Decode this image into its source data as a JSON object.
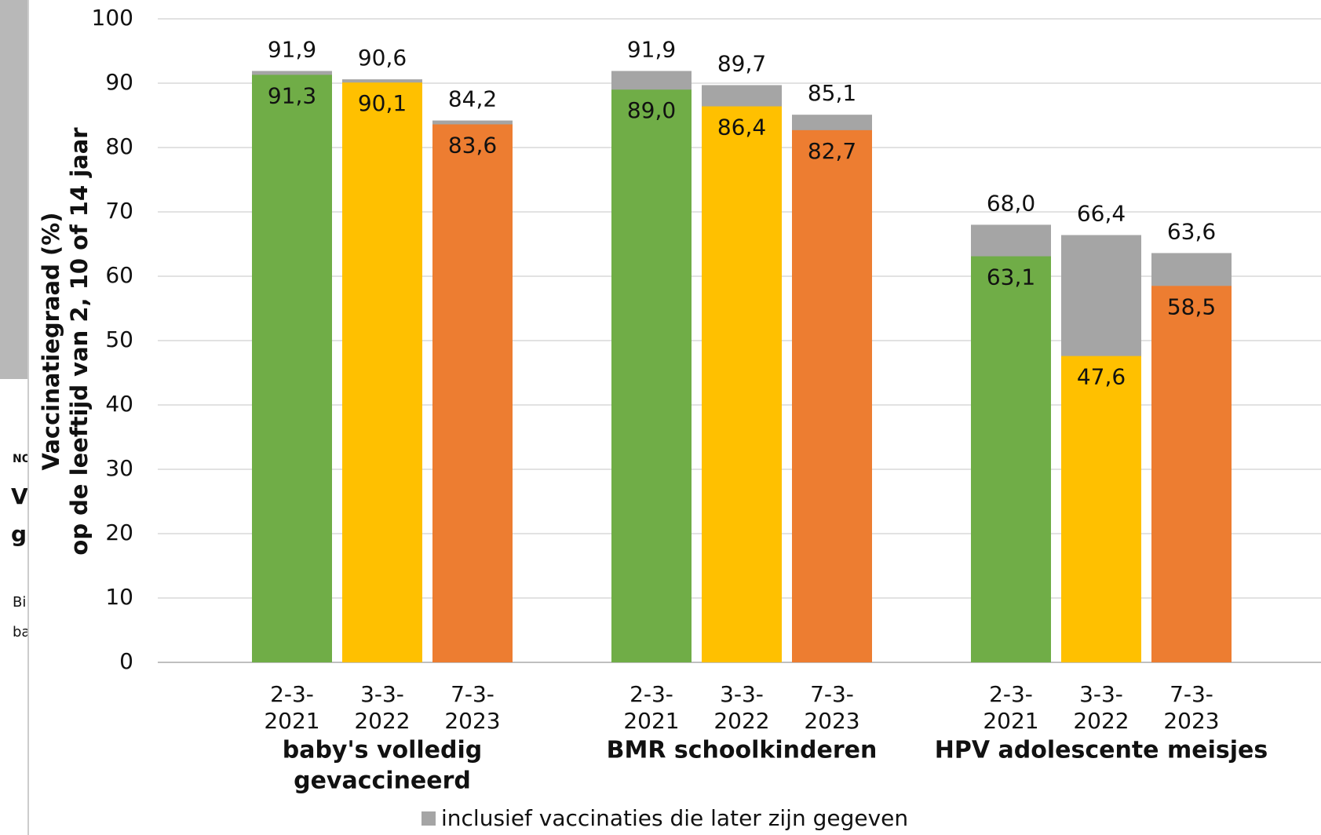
{
  "chart_data": {
    "type": "bar",
    "y_axis_label": [
      "Vaccinatiegraad (%)",
      "op de leeftijd van 2, 10 of 14 jaar"
    ],
    "categories": [
      [
        "2-3-",
        "2021"
      ],
      [
        "3-3-",
        "2022"
      ],
      [
        "7-3-",
        "2023"
      ],
      [
        "2-3-",
        "2021"
      ],
      [
        "3-3-",
        "2022"
      ],
      [
        "7-3-",
        "2023"
      ],
      [
        "2-3-",
        "2021"
      ],
      [
        "3-3-",
        "2022"
      ],
      [
        "7-3-",
        "2023"
      ]
    ],
    "groups": [
      [
        "baby's volledig",
        "gevaccineerd"
      ],
      [
        "BMR schoolkinderen"
      ],
      [
        "HPV adolescente meisjes"
      ]
    ],
    "series": [
      {
        "name": "inclusief vaccinaties die later zijn gegeven",
        "color": "#a5a5a5",
        "values": [
          91.9,
          90.6,
          84.2,
          91.9,
          89.7,
          85.1,
          68.0,
          66.4,
          63.6
        ],
        "value_labels": [
          "91,9",
          "90,6",
          "84,2",
          "91,9",
          "89,7",
          "85,1",
          "68,0",
          "66,4",
          "63,6"
        ]
      },
      {
        "colors": [
          "#70ad47",
          "#ffc000",
          "#ed7d31",
          "#70ad47",
          "#ffc000",
          "#ed7d31",
          "#70ad47",
          "#ffc000",
          "#ed7d31"
        ],
        "values": [
          91.3,
          90.1,
          83.6,
          89.0,
          86.4,
          82.7,
          63.1,
          47.6,
          58.5
        ],
        "value_labels": [
          "91,3",
          "90,1",
          "83,6",
          "89,0",
          "86,4",
          "82,7",
          "63,1",
          "47,6",
          "58,5"
        ]
      }
    ],
    "ylim": [
      0,
      100
    ],
    "yticks": [
      0,
      10,
      20,
      30,
      40,
      50,
      60,
      70,
      80,
      90,
      100
    ],
    "grid": true
  },
  "background_fragments": [
    "NO",
    "V",
    "g",
    "Bi",
    "ba"
  ]
}
